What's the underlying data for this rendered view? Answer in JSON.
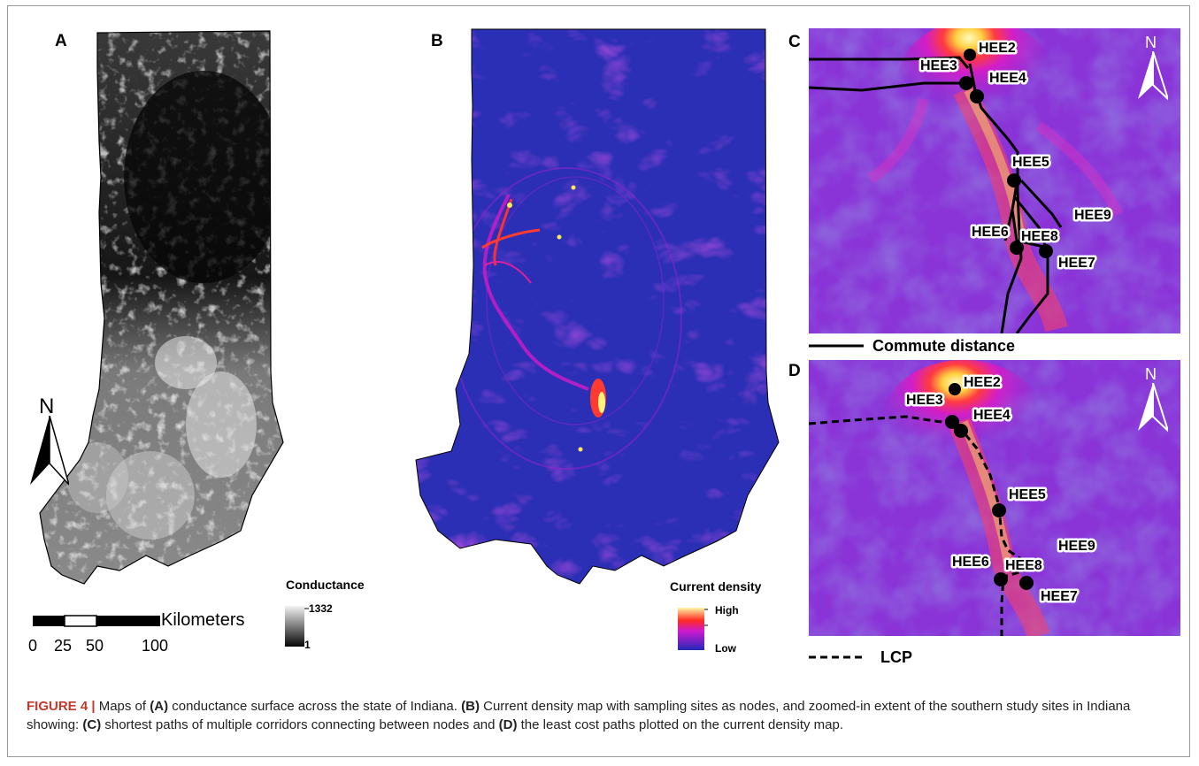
{
  "panels": {
    "a": {
      "label": "A"
    },
    "b": {
      "label": "B"
    },
    "c": {
      "label": "C"
    },
    "d": {
      "label": "D"
    }
  },
  "conductance_legend": {
    "title": "Conductance",
    "max": "1332",
    "min": "1"
  },
  "current_legend": {
    "title": "Current density",
    "high": "High",
    "low": "Low"
  },
  "scale_bar": {
    "unit": "Kilometers",
    "ticks": [
      "0",
      "25",
      "50",
      "100"
    ]
  },
  "north": {
    "label": "N"
  },
  "commute_key": {
    "label": "Commute distance"
  },
  "lcp_key": {
    "label": "LCP"
  },
  "sites": [
    "HEE2",
    "HEE3",
    "HEE4",
    "HEE5",
    "HEE6",
    "HEE7",
    "HEE8",
    "HEE9"
  ],
  "caption": {
    "figure": "FIGURE 4 |",
    "t1": " Maps of ",
    "a": "(A)",
    "t2": " conductance surface across the state of Indiana. ",
    "b": "(B)",
    "t3": " Current density map with sampling sites as nodes, and zoomed-in extent of the southern study sites in Indiana showing: ",
    "c": "(C)",
    "t4": " shortest paths of multiple corridors connecting between nodes and ",
    "d": "(D)",
    "t5": " the least cost paths plotted on the current density map."
  },
  "colors": {
    "low": "#2a2fb8",
    "mid": "#c21bd1",
    "hot": "#ff2020",
    "high": "#fff6a0"
  }
}
